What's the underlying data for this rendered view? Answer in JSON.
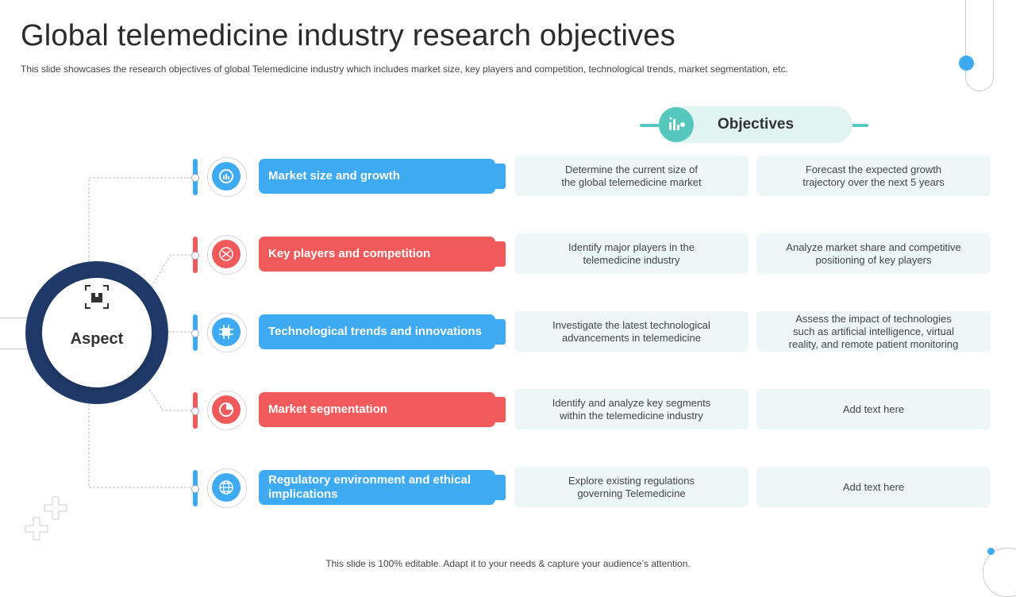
{
  "header": {
    "title": "Global telemedicine industry research objectives",
    "subtitle": "This slide showcases the research objectives of global Telemedicine industry which includes market size, key players and competition, technological trends, market segmentation, etc."
  },
  "aspect": {
    "label": "Aspect"
  },
  "objectives": {
    "label": "Objectives"
  },
  "rows": [
    {
      "label": "Market size and growth",
      "color": "blue",
      "icon": "chart-icon",
      "objective_1": "Determine the current size of\nthe global telemedicine market",
      "objective_2": "Forecast the expected growth\ntrajectory over the next 5 years"
    },
    {
      "label": "Key players and competition",
      "color": "red",
      "icon": "competition-icon",
      "objective_1": "Identify major players in the\ntelemedicine industry",
      "objective_2": "Analyze market share and competitive\npositioning of key players"
    },
    {
      "label": "Technological trends and innovations",
      "color": "blue",
      "icon": "chip-icon",
      "objective_1": "Investigate  the latest technological\nadvancements  in telemedicine",
      "objective_2": "Assess the impact of technologies\nsuch as artificial intelligence, virtual\nreality, and remote patient monitoring"
    },
    {
      "label": "Market segmentation",
      "color": "red",
      "icon": "segment-icon",
      "objective_1": "Identify and analyze key segments\nwithin the telemedicine industry",
      "objective_2": "Add text here"
    },
    {
      "label": "Regulatory environment and ethical implications",
      "color": "blue",
      "icon": "globe-icon",
      "objective_1": "Explore existing regulations\ngoverning  Telemedicine",
      "objective_2": "Add text here"
    }
  ],
  "colors": {
    "blue": "#3eaaf1",
    "red": "#f05a5b",
    "navy": "#1f3a68",
    "teal": "#55c7bd"
  },
  "footer": {
    "text": "This slide is 100% editable. Adapt it to your needs & capture your audience’s attention."
  }
}
